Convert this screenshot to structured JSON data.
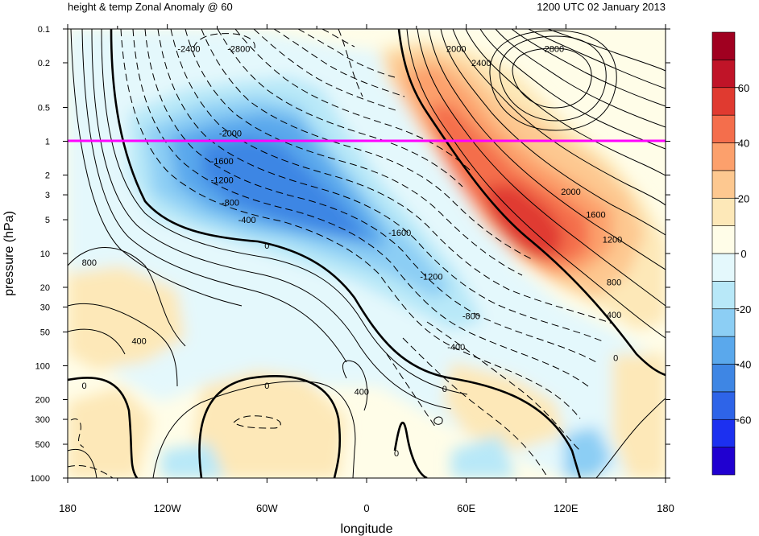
{
  "chart_data": {
    "type": "heatmap",
    "title_left": "height & temp Zonal Anomaly @ 60",
    "title_right": "1200 UTC 02 January 2013",
    "xlabel": "longitude",
    "ylabel": "pressure (hPa)",
    "x_ticks": [
      "180",
      "120W",
      "60W",
      "0",
      "60E",
      "120E",
      "180"
    ],
    "x_tick_values": [
      -180,
      -120,
      -60,
      0,
      60,
      120,
      180
    ],
    "y_ticks": [
      "0.1",
      "0.2",
      "0.5",
      "1",
      "2",
      "3",
      "5",
      "10",
      "20",
      "30",
      "50",
      "100",
      "200",
      "300",
      "500",
      "1000"
    ],
    "y_tick_values": [
      0.1,
      0.2,
      0.5,
      1,
      2,
      3,
      5,
      10,
      20,
      30,
      50,
      100,
      200,
      300,
      500,
      1000
    ],
    "y_scale": "log",
    "xlim": [
      -180,
      180
    ],
    "ylim": [
      1000,
      0.1
    ],
    "reference_line": {
      "pressure": 1,
      "color": "#ff00ff"
    },
    "colorbar": {
      "levels": [
        -70,
        -60,
        -50,
        -40,
        -30,
        -20,
        -10,
        0,
        10,
        20,
        30,
        40,
        50,
        60,
        70
      ],
      "tick_labels": [
        "-60",
        "-40",
        "-20",
        "0",
        "20",
        "40",
        "60"
      ],
      "tick_values": [
        -60,
        -40,
        -20,
        0,
        20,
        40,
        60
      ],
      "colors": [
        "#2000d0",
        "#1c30f0",
        "#2e64e8",
        "#3e86e4",
        "#5aa8ec",
        "#8ccef4",
        "#b8e8f8",
        "#e4f8fc",
        "#fffde8",
        "#fde8b8",
        "#fdc890",
        "#fca06c",
        "#f46e4c",
        "#e03a30",
        "#c01428",
        "#a00020"
      ]
    },
    "contour_labels": [
      {
        "text": "-2400",
        "lon": -107,
        "p": 0.15
      },
      {
        "text": "-2800",
        "lon": -77,
        "p": 0.15
      },
      {
        "text": "2000",
        "lon": 54,
        "p": 0.15
      },
      {
        "text": "2400",
        "lon": 69,
        "p": 0.2
      },
      {
        "text": "2800",
        "lon": 113,
        "p": 0.15
      },
      {
        "text": "-2000",
        "lon": -82,
        "p": 0.85
      },
      {
        "text": "-1600",
        "lon": -87,
        "p": 1.5
      },
      {
        "text": "-1200",
        "lon": -87,
        "p": 2.2
      },
      {
        "text": "-800",
        "lon": -82,
        "p": 3.5
      },
      {
        "text": "-400",
        "lon": -72,
        "p": 5
      },
      {
        "text": "0",
        "lon": -60,
        "p": 8.5
      },
      {
        "text": "-1600",
        "lon": 20,
        "p": 6.5
      },
      {
        "text": "-1200",
        "lon": 39,
        "p": 16
      },
      {
        "text": "-800",
        "lon": 63,
        "p": 36
      },
      {
        "text": "-400",
        "lon": 54,
        "p": 68
      },
      {
        "text": "2000",
        "lon": 123,
        "p": 2.8
      },
      {
        "text": "1600",
        "lon": 138,
        "p": 4.5
      },
      {
        "text": "1200",
        "lon": 148,
        "p": 7.5
      },
      {
        "text": "800",
        "lon": 149,
        "p": 18
      },
      {
        "text": "400",
        "lon": 149,
        "p": 35
      },
      {
        "text": "0",
        "lon": 150,
        "p": 85
      },
      {
        "text": "800",
        "lon": -167,
        "p": 12
      },
      {
        "text": "400",
        "lon": -137,
        "p": 60
      },
      {
        "text": "0",
        "lon": -170,
        "p": 150
      },
      {
        "text": "0",
        "lon": -60,
        "p": 150
      },
      {
        "text": "400",
        "lon": -3,
        "p": 170
      },
      {
        "text": "0",
        "lon": 47,
        "p": 160
      },
      {
        "text": "0",
        "lon": 18,
        "p": 600
      }
    ]
  }
}
